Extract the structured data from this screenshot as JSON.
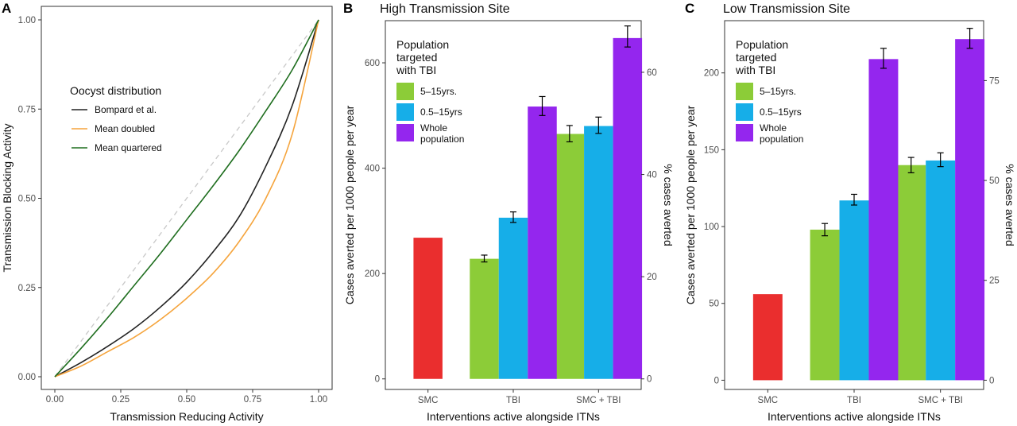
{
  "chart_data": [
    {
      "panel": "A",
      "type": "line",
      "title": "",
      "xlabel": "Transmission Reducing Activity",
      "ylabel": "Transmission Blocking Activity",
      "xlim": [
        0,
        1
      ],
      "ylim": [
        0,
        1
      ],
      "x_ticks": [
        "0.00",
        "0.25",
        "0.50",
        "0.75",
        "1.00"
      ],
      "y_ticks": [
        "0.00",
        "0.25",
        "0.50",
        "0.75",
        "1.00"
      ],
      "grid": false,
      "legend_title": "Oocyst distribution",
      "legend_position": "top-left",
      "reference_line": {
        "style": "dashed",
        "color": "#c8c8c8",
        "from": [
          0,
          0
        ],
        "to": [
          1,
          1
        ]
      },
      "series": [
        {
          "name": "Bompard et al.",
          "color": "#222222",
          "x": [
            0,
            0.1,
            0.2,
            0.3,
            0.4,
            0.5,
            0.6,
            0.7,
            0.8,
            0.9,
            1.0
          ],
          "y": [
            0,
            0.04,
            0.085,
            0.135,
            0.195,
            0.265,
            0.35,
            0.45,
            0.59,
            0.76,
            1.0
          ]
        },
        {
          "name": "Mean doubled",
          "color": "#f5a43c",
          "x": [
            0,
            0.1,
            0.2,
            0.3,
            0.4,
            0.5,
            0.6,
            0.7,
            0.8,
            0.9,
            1.0
          ],
          "y": [
            0,
            0.03,
            0.07,
            0.11,
            0.16,
            0.22,
            0.29,
            0.38,
            0.5,
            0.68,
            1.0
          ]
        },
        {
          "name": "Mean quartered",
          "color": "#1f6e1f",
          "x": [
            0,
            0.1,
            0.2,
            0.3,
            0.4,
            0.5,
            0.6,
            0.7,
            0.8,
            0.9,
            1.0
          ],
          "y": [
            0,
            0.08,
            0.165,
            0.255,
            0.345,
            0.44,
            0.535,
            0.635,
            0.745,
            0.86,
            1.0
          ]
        }
      ]
    },
    {
      "panel": "B",
      "type": "bar",
      "title": "High Transmission Site",
      "xlabel": "Interventions active alongside ITNs",
      "ylabel": "Cases averted per 1000 people per year",
      "ylabel_right": "% cases averted",
      "ylim": [
        -20,
        680
      ],
      "y_ticks": [
        0,
        200,
        400,
        600
      ],
      "y_right_ticks": [
        "0",
        "20",
        "40",
        "60"
      ],
      "y_right_values": [
        0,
        194,
        388,
        582
      ],
      "grid": false,
      "categories": [
        "SMC",
        "TBI",
        "SMC + TBI"
      ],
      "legend_title": "Population targeted with TBI",
      "legend_title_lines": [
        "Population",
        "targeted",
        "with TBI"
      ],
      "legend_position": "top-left",
      "legend": [
        {
          "label": "5–15yrs.",
          "color": "#8ccc38"
        },
        {
          "label": "0.5–15yrs",
          "color": "#16aee8"
        },
        {
          "label": "Whole population",
          "label_lines": [
            "Whole",
            "population"
          ],
          "color": "#9426ee"
        }
      ],
      "smc_bar": {
        "category": "SMC",
        "value": 268,
        "color": "#ea2e2e"
      },
      "series": [
        {
          "name": "5–15yrs.",
          "color": "#8ccc38",
          "values": [
            null,
            228,
            465
          ],
          "err_low": [
            null,
            222,
            450
          ],
          "err_high": [
            null,
            235,
            481
          ]
        },
        {
          "name": "0.5–15yrs",
          "color": "#16aee8",
          "values": [
            null,
            306,
            480
          ],
          "err_low": [
            null,
            297,
            466
          ],
          "err_high": [
            null,
            317,
            497
          ]
        },
        {
          "name": "Whole population",
          "color": "#9426ee",
          "values": [
            null,
            517,
            647
          ],
          "err_low": [
            null,
            500,
            630
          ],
          "err_high": [
            null,
            536,
            670
          ]
        }
      ]
    },
    {
      "panel": "C",
      "type": "bar",
      "title": "Low Transmission Site",
      "xlabel": "Interventions active alongside ITNs",
      "ylabel": "Cases averted per 1000 people per year",
      "ylabel_right": "% cases averted",
      "ylim": [
        -6,
        234
      ],
      "y_ticks": [
        0,
        50,
        100,
        150,
        200
      ],
      "y_right_ticks": [
        "0",
        "25",
        "50",
        "75"
      ],
      "y_right_values": [
        0,
        65,
        130,
        195
      ],
      "grid": false,
      "categories": [
        "SMC",
        "TBI",
        "SMC + TBI"
      ],
      "legend_title": "Population targeted with TBI",
      "legend_title_lines": [
        "Population",
        "targeted",
        "with TBI"
      ],
      "legend_position": "top-left",
      "legend": [
        {
          "label": "5–15yrs.",
          "color": "#8ccc38"
        },
        {
          "label": "0.5–15yrs",
          "color": "#16aee8"
        },
        {
          "label": "Whole population",
          "label_lines": [
            "Whole",
            "population"
          ],
          "color": "#9426ee"
        }
      ],
      "smc_bar": {
        "category": "SMC",
        "value": 56,
        "color": "#ea2e2e"
      },
      "series": [
        {
          "name": "5–15yrs.",
          "color": "#8ccc38",
          "values": [
            null,
            98,
            140
          ],
          "err_low": [
            null,
            94,
            135
          ],
          "err_high": [
            null,
            102,
            145
          ]
        },
        {
          "name": "0.5–15yrs",
          "color": "#16aee8",
          "values": [
            null,
            117,
            143
          ],
          "err_low": [
            null,
            114,
            139
          ],
          "err_high": [
            null,
            121,
            148
          ]
        },
        {
          "name": "Whole population",
          "color": "#9426ee",
          "values": [
            null,
            209,
            222
          ],
          "err_low": [
            null,
            203,
            216
          ],
          "err_high": [
            null,
            216,
            229
          ]
        }
      ]
    }
  ]
}
